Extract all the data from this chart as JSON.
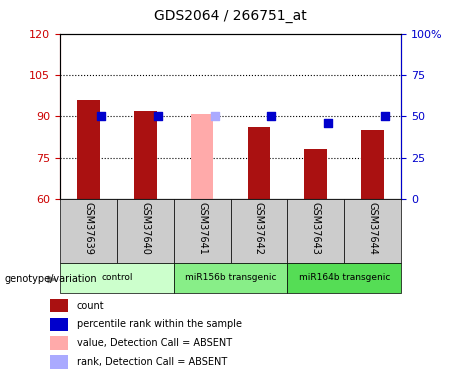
{
  "title": "GDS2064 / 266751_at",
  "samples": [
    "GSM37639",
    "GSM37640",
    "GSM37641",
    "GSM37642",
    "GSM37643",
    "GSM37644"
  ],
  "bar_values": [
    96,
    92,
    91,
    86,
    78,
    85
  ],
  "bar_colors": [
    "#aa1111",
    "#aa1111",
    "#ffaaaa",
    "#aa1111",
    "#aa1111",
    "#aa1111"
  ],
  "rank_values": [
    50,
    50,
    50,
    50,
    46,
    50
  ],
  "rank_colors": [
    "#0000cc",
    "#0000cc",
    "#aaaaff",
    "#0000cc",
    "#0000cc",
    "#0000cc"
  ],
  "ylim_left": [
    60,
    120
  ],
  "ylim_right": [
    0,
    100
  ],
  "yticks_left": [
    60,
    75,
    90,
    105,
    120
  ],
  "yticks_right": [
    0,
    25,
    50,
    75,
    100
  ],
  "ytick_labels_left": [
    "60",
    "75",
    "90",
    "105",
    "120"
  ],
  "ytick_labels_right": [
    "0",
    "25",
    "50",
    "75",
    "100%"
  ],
  "grid_values": [
    75,
    90,
    105
  ],
  "groups": [
    {
      "label": "control",
      "cols": [
        0,
        1
      ],
      "color": "#ccffcc"
    },
    {
      "label": "miR156b transgenic",
      "cols": [
        2,
        3
      ],
      "color": "#88ee88"
    },
    {
      "label": "miR164b transgenic",
      "cols": [
        4,
        5
      ],
      "color": "#55dd55"
    }
  ],
  "group_label": "genotype/variation",
  "legend_items": [
    {
      "label": "count",
      "color": "#aa1111"
    },
    {
      "label": "percentile rank within the sample",
      "color": "#0000cc"
    },
    {
      "label": "value, Detection Call = ABSENT",
      "color": "#ffaaaa"
    },
    {
      "label": "rank, Detection Call = ABSENT",
      "color": "#aaaaff"
    }
  ],
  "bar_width": 0.4,
  "rank_marker_size": 35,
  "left_tick_color": "#cc0000",
  "right_tick_color": "#0000cc"
}
